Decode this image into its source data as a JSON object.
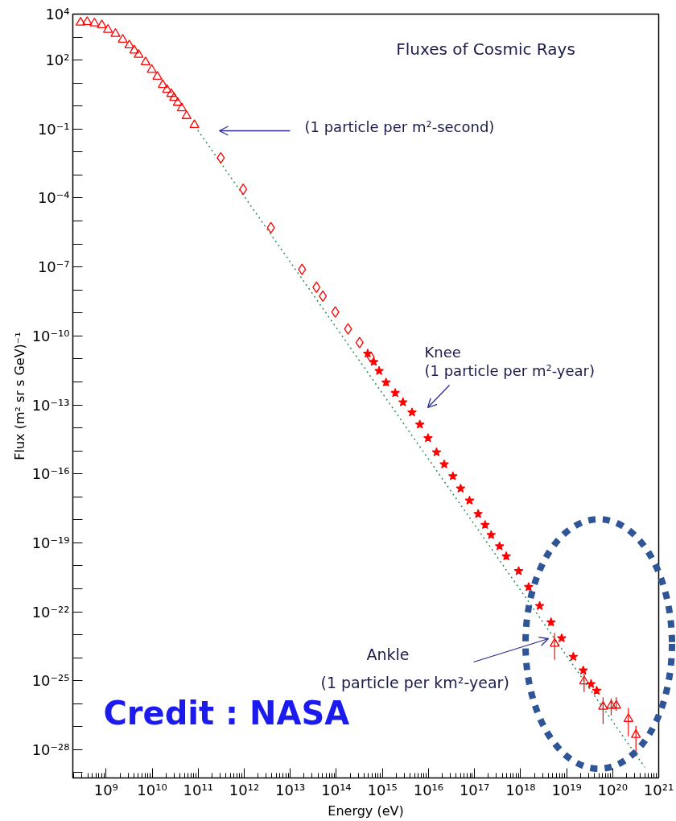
{
  "chart_data": {
    "type": "scatter",
    "title": "Fluxes of Cosmic Rays",
    "xlabel": "Energy (eV)",
    "ylabel": "Flux (m² sr s GeV)⁻¹",
    "log": "xy",
    "xlim": [
      190000000.0,
      1e+21
    ],
    "ylim": [
      5.9e-30,
      10000.0
    ],
    "xticks": [
      {
        "value": 1000000000.0,
        "label": "10⁹"
      },
      {
        "value": 10000000000.0,
        "label": "10¹⁰"
      },
      {
        "value": 100000000000.0,
        "label": "10¹¹"
      },
      {
        "value": 1000000000000.0,
        "label": "10¹²"
      },
      {
        "value": 10000000000000.0,
        "label": "10¹³"
      },
      {
        "value": 100000000000000.0,
        "label": "10¹⁴"
      },
      {
        "value": 1000000000000000.0,
        "label": "10¹⁵"
      },
      {
        "value": 1e+16,
        "label": "10¹⁶"
      },
      {
        "value": 1e+17,
        "label": "10¹⁷"
      },
      {
        "value": 1e+18,
        "label": "10¹⁸"
      },
      {
        "value": 1e+19,
        "label": "10¹⁹"
      },
      {
        "value": 1e+20,
        "label": "10²⁰"
      },
      {
        "value": 1e+21,
        "label": "10²¹"
      }
    ],
    "yticks": [
      {
        "value": 10000.0,
        "label": "10⁴"
      },
      {
        "value": 1000.0,
        "label": null
      },
      {
        "value": 100.0,
        "label": "10²"
      },
      {
        "value": 10.0,
        "label": null
      },
      {
        "value": 1,
        "label": null
      },
      {
        "value": 0.1,
        "label": "10⁻¹"
      },
      {
        "value": 0.01,
        "label": null
      },
      {
        "value": 0.001,
        "label": null
      },
      {
        "value": 0.0001,
        "label": "10⁻⁴"
      },
      {
        "value": 1e-05,
        "label": null
      },
      {
        "value": 1e-06,
        "label": null
      },
      {
        "value": 1e-07,
        "label": "10⁻⁷"
      },
      {
        "value": 1e-08,
        "label": null
      },
      {
        "value": 1e-09,
        "label": null
      },
      {
        "value": 1e-10,
        "label": "10⁻¹⁰"
      },
      {
        "value": 1e-11,
        "label": null
      },
      {
        "value": 1e-12,
        "label": null
      },
      {
        "value": 1e-13,
        "label": "10⁻¹³"
      },
      {
        "value": 1e-14,
        "label": null
      },
      {
        "value": 1e-15,
        "label": null
      },
      {
        "value": 1e-16,
        "label": "10⁻¹⁶"
      },
      {
        "value": 1e-17,
        "label": null
      },
      {
        "value": 1e-18,
        "label": null
      },
      {
        "value": 1e-19,
        "label": "10⁻¹⁹"
      },
      {
        "value": 1e-20,
        "label": null
      },
      {
        "value": 1e-21,
        "label": null
      },
      {
        "value": 1e-22,
        "label": "10⁻²²"
      },
      {
        "value": 1e-23,
        "label": null
      },
      {
        "value": 1e-24,
        "label": null
      },
      {
        "value": 1e-25,
        "label": "10⁻²⁵"
      },
      {
        "value": 1e-26,
        "label": null
      },
      {
        "value": 1e-27,
        "label": null
      },
      {
        "value": 1e-28,
        "label": "10⁻²⁸"
      },
      {
        "value": 1e-29,
        "label": null
      }
    ],
    "series": [
      {
        "type": "line",
        "color": "#2e8b57",
        "line_style": "dotted",
        "x": [
          98000000000.0,
          5e+20
        ],
        "values": [
          0.089,
          1.7e-29
        ]
      },
      {
        "marker": "triangle",
        "color": "#ff0000",
        "x": [
          280000000.0,
          390000000.0,
          560000000.0,
          810000000.0,
          1100000000.0,
          1600000000.0,
          2300000000.0,
          3200000000.0,
          4100000000.0,
          5100000000.0,
          7200000000.0,
          9800000000.0,
          13000000000.0,
          17000000000.0,
          21000000000.0,
          26000000000.0,
          30000000000.0,
          36000000000.0,
          44000000000.0,
          56000000000.0,
          83000000000.0
        ],
        "values": [
          4300.0,
          4600.0,
          4000.0,
          3300.0,
          2100.0,
          1400.0,
          780,
          440,
          260,
          170,
          81,
          38,
          19,
          8.3,
          5.1,
          3.4,
          2.3,
          1.4,
          0.81,
          0.37,
          0.15
        ]
      },
      {
        "marker": "diamond",
        "color": "#ff0000",
        "x": [
          310000000000.0,
          950000000000.0,
          3800000000000.0,
          18000000000000.0,
          37000000000000.0,
          51000000000000.0,
          95000000000000.0,
          180000000000000.0,
          320000000000000.0,
          560000000000000.0
        ],
        "values": [
          0.0056,
          0.00024,
          5.1e-06,
          7.8e-08,
          1.3e-08,
          5.4e-09,
          1.1e-09,
          2e-10,
          5.1e-11,
          1.2e-11
        ]
      },
      {
        "marker": "star",
        "color": "#ff0000",
        "x": [
          480000000000000.0,
          650000000000000.0,
          850000000000000.0,
          1200000000000000.0,
          1900000000000000.0,
          2800000000000000.0,
          4400000000000000.0,
          6500000000000000.0,
          9800000000000000.0,
          1.5e+16,
          2.2e+16,
          3.4e+16,
          5e+16,
          7.8e+16,
          1.2e+17,
          1.7e+17,
          2.3e+17,
          3.5e+17,
          4.9e+17,
          9.1e+17,
          1.5e+18,
          2.6e+18,
          4.6e+18,
          7.8e+18,
          1.4e+19,
          2.3e+19,
          3.4e+19,
          4.5e+19
        ],
        "values": [
          1.7e-11,
          7.4e-12,
          3e-12,
          9.5e-13,
          3.3e-13,
          1.3e-13,
          4.7e-14,
          1.4e-14,
          3.6e-15,
          8.7e-16,
          2.6e-16,
          7.9e-17,
          2.3e-17,
          6.9e-18,
          1.8e-18,
          6e-19,
          2.2e-19,
          7.1e-20,
          2.6e-20,
          5.9e-21,
          1.2e-21,
          1.8e-22,
          3.5e-23,
          7.1e-24,
          1.1e-24,
          2.8e-25,
          7.2e-26,
          3.7e-26
        ]
      },
      {
        "marker": "triangle",
        "color": "#ff0000",
        "x": [
          5.5e+18,
          2.4e+19,
          6.2e+19,
          9.3e+19,
          1.2e+20,
          2.2e+20,
          3.2e+20
        ],
        "values": [
          4.1e-24,
          9.5e-26,
          7.4e-27,
          8.3e-27,
          8.3e-27,
          2.2e-27,
          4.4e-28
        ],
        "errors": [
          [
            8.1e-25,
            1.2e-23
          ],
          [
            3.2e-26,
            2.1e-25
          ],
          [
            1.3e-27,
            1.9e-26
          ],
          [
            3.1e-27,
            1.7e-26
          ],
          [
            4.9e-27,
            1.9e-26
          ],
          [
            3.8e-28,
            6.5e-27
          ],
          [
            7.6e-29,
            1.1e-27
          ]
        ]
      }
    ],
    "annotations": [
      "(1 particle per m²-second)",
      "Knee\n(1 particle per m²-year)",
      "Ankle\n(1 particle per km²-year)",
      "Credit : NASA"
    ]
  }
}
